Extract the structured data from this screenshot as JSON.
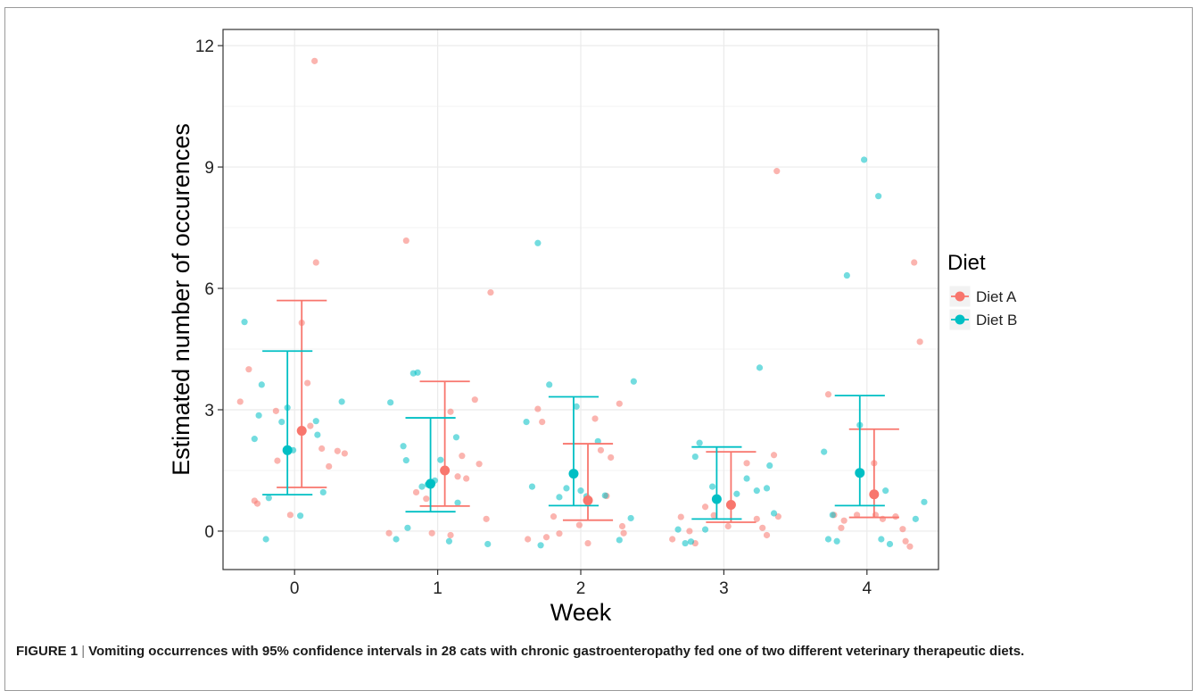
{
  "caption": {
    "label": "FIGURE 1",
    "separator": "|",
    "text": "Vomiting occurrences with 95% confidence intervals in 28 cats with chronic gastroenteropathy fed one of two different veterinary therapeutic diets."
  },
  "colors": {
    "diet_a": "#F8766D",
    "diet_b": "#00BFC4",
    "grid": "#ebebeb",
    "panel_border": "#333333"
  },
  "chart_data": {
    "type": "scatter",
    "xlabel": "Week",
    "ylabel": "Estimated number of occurences",
    "x_ticks": [
      0,
      1,
      2,
      3,
      4
    ],
    "y_ticks": [
      0,
      3,
      6,
      9,
      12
    ],
    "xlim": [
      -0.5,
      4.5
    ],
    "ylim": [
      -0.95,
      12.4
    ],
    "grid": true,
    "legend": {
      "title": "Diet",
      "placement": "right",
      "entries": [
        "Diet A",
        "Diet B"
      ]
    },
    "series": [
      {
        "name": "Diet A",
        "estimates": [
          {
            "week": 0,
            "mean": 2.48,
            "lower": 1.08,
            "upper": 5.7
          },
          {
            "week": 1,
            "mean": 1.5,
            "lower": 0.62,
            "upper": 3.7
          },
          {
            "week": 2,
            "mean": 0.76,
            "lower": 0.27,
            "upper": 2.16
          },
          {
            "week": 3,
            "mean": 0.65,
            "lower": 0.22,
            "upper": 1.96
          },
          {
            "week": 4,
            "mean": 0.91,
            "lower": 0.34,
            "upper": 2.52
          }
        ],
        "points": [
          [
            -0.38,
            3.2
          ],
          [
            -0.32,
            4.0
          ],
          [
            -0.28,
            0.75
          ],
          [
            -0.26,
            0.68
          ],
          [
            -0.13,
            2.97
          ],
          [
            -0.12,
            1.74
          ],
          [
            -0.03,
            0.4
          ],
          [
            0.05,
            5.15
          ],
          [
            0.09,
            3.66
          ],
          [
            0.11,
            2.6
          ],
          [
            0.15,
            6.64
          ],
          [
            0.14,
            11.62
          ],
          [
            0.19,
            2.04
          ],
          [
            0.24,
            1.6
          ],
          [
            0.3,
            1.98
          ],
          [
            0.35,
            1.92
          ],
          [
            0.66,
            -0.05
          ],
          [
            0.78,
            7.18
          ],
          [
            0.85,
            0.96
          ],
          [
            0.92,
            0.8
          ],
          [
            0.96,
            -0.05
          ],
          [
            1.09,
            2.95
          ],
          [
            1.14,
            1.35
          ],
          [
            1.17,
            1.86
          ],
          [
            1.2,
            1.3
          ],
          [
            1.26,
            3.25
          ],
          [
            1.29,
            1.66
          ],
          [
            1.34,
            0.3
          ],
          [
            1.37,
            5.9
          ],
          [
            1.09,
            -0.1
          ],
          [
            1.63,
            -0.2
          ],
          [
            1.7,
            3.02
          ],
          [
            1.73,
            2.7
          ],
          [
            1.76,
            -0.15
          ],
          [
            1.81,
            0.36
          ],
          [
            1.85,
            -0.06
          ],
          [
            1.99,
            0.15
          ],
          [
            2.05,
            -0.3
          ],
          [
            2.1,
            2.78
          ],
          [
            2.14,
            2.0
          ],
          [
            2.18,
            0.87
          ],
          [
            2.21,
            1.82
          ],
          [
            2.27,
            3.15
          ],
          [
            2.29,
            0.12
          ],
          [
            2.3,
            -0.05
          ],
          [
            2.64,
            -0.2
          ],
          [
            2.7,
            0.35
          ],
          [
            2.76,
            0.0
          ],
          [
            2.8,
            -0.3
          ],
          [
            2.87,
            0.6
          ],
          [
            2.93,
            0.39
          ],
          [
            3.03,
            0.12
          ],
          [
            3.16,
            1.68
          ],
          [
            3.23,
            0.3
          ],
          [
            3.27,
            0.08
          ],
          [
            3.3,
            -0.1
          ],
          [
            3.35,
            1.88
          ],
          [
            3.37,
            8.9
          ],
          [
            3.38,
            0.36
          ],
          [
            3.73,
            3.38
          ],
          [
            3.77,
            0.4
          ],
          [
            3.82,
            0.08
          ],
          [
            3.84,
            0.26
          ],
          [
            3.93,
            0.4
          ],
          [
            4.05,
            1.68
          ],
          [
            4.06,
            0.4
          ],
          [
            4.11,
            0.3
          ],
          [
            4.2,
            0.36
          ],
          [
            4.25,
            0.05
          ],
          [
            4.27,
            -0.25
          ],
          [
            4.3,
            -0.38
          ],
          [
            4.33,
            6.64
          ],
          [
            4.37,
            4.68
          ]
        ]
      },
      {
        "name": "Diet B",
        "estimates": [
          {
            "week": 0,
            "mean": 2.0,
            "lower": 0.9,
            "upper": 4.45
          },
          {
            "week": 1,
            "mean": 1.17,
            "lower": 0.48,
            "upper": 2.8
          },
          {
            "week": 2,
            "mean": 1.42,
            "lower": 0.63,
            "upper": 3.32
          },
          {
            "week": 3,
            "mean": 0.79,
            "lower": 0.3,
            "upper": 2.08
          },
          {
            "week": 4,
            "mean": 1.44,
            "lower": 0.63,
            "upper": 3.35
          }
        ],
        "points": [
          [
            -0.35,
            5.17
          ],
          [
            -0.28,
            2.28
          ],
          [
            -0.25,
            2.86
          ],
          [
            -0.23,
            3.62
          ],
          [
            -0.2,
            -0.2
          ],
          [
            -0.18,
            0.82
          ],
          [
            -0.09,
            2.7
          ],
          [
            -0.05,
            3.05
          ],
          [
            -0.01,
            2.0
          ],
          [
            0.04,
            0.38
          ],
          [
            0.15,
            2.72
          ],
          [
            0.16,
            2.38
          ],
          [
            0.2,
            0.96
          ],
          [
            0.33,
            3.2
          ],
          [
            0.67,
            3.18
          ],
          [
            0.71,
            -0.2
          ],
          [
            0.76,
            2.1
          ],
          [
            0.78,
            1.75
          ],
          [
            0.79,
            0.08
          ],
          [
            0.83,
            3.9
          ],
          [
            0.86,
            3.92
          ],
          [
            0.89,
            1.1
          ],
          [
            0.93,
            1.15
          ],
          [
            0.98,
            1.25
          ],
          [
            1.02,
            1.76
          ],
          [
            1.08,
            -0.25
          ],
          [
            1.13,
            2.32
          ],
          [
            1.14,
            0.7
          ],
          [
            1.35,
            -0.32
          ],
          [
            1.62,
            2.7
          ],
          [
            1.66,
            1.1
          ],
          [
            1.7,
            7.12
          ],
          [
            1.72,
            -0.35
          ],
          [
            1.78,
            3.62
          ],
          [
            1.85,
            0.84
          ],
          [
            1.9,
            1.06
          ],
          [
            1.97,
            3.08
          ],
          [
            2.0,
            1.0
          ],
          [
            2.04,
            0.86
          ],
          [
            2.12,
            2.22
          ],
          [
            2.17,
            0.88
          ],
          [
            2.27,
            -0.22
          ],
          [
            2.35,
            0.32
          ],
          [
            2.37,
            3.7
          ],
          [
            2.68,
            0.04
          ],
          [
            2.73,
            -0.3
          ],
          [
            2.77,
            -0.26
          ],
          [
            2.8,
            1.84
          ],
          [
            2.83,
            2.18
          ],
          [
            2.87,
            0.04
          ],
          [
            2.92,
            1.1
          ],
          [
            2.96,
            0.78
          ],
          [
            3.09,
            0.92
          ],
          [
            3.16,
            1.3
          ],
          [
            3.23,
            1.0
          ],
          [
            3.25,
            4.04
          ],
          [
            3.3,
            1.06
          ],
          [
            3.32,
            1.62
          ],
          [
            3.35,
            0.44
          ],
          [
            3.7,
            1.96
          ],
          [
            3.73,
            -0.2
          ],
          [
            3.76,
            0.4
          ],
          [
            3.79,
            -0.25
          ],
          [
            3.86,
            6.32
          ],
          [
            3.95,
            2.62
          ],
          [
            3.98,
            9.18
          ],
          [
            4.08,
            8.28
          ],
          [
            4.1,
            -0.2
          ],
          [
            4.13,
            1.0
          ],
          [
            4.16,
            -0.32
          ],
          [
            4.34,
            0.3
          ],
          [
            4.4,
            0.72
          ]
        ]
      }
    ]
  }
}
